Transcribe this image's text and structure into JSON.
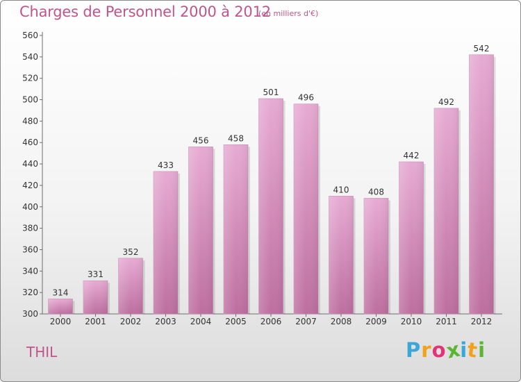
{
  "header": {
    "title": "Charges de Personnel 2000 à 2012",
    "subtitle": "(en milliers d'€)"
  },
  "footer": {
    "commune": "THIL",
    "brand": {
      "letters": [
        "P",
        "r",
        "o",
        "x",
        "i",
        "t",
        "i"
      ],
      "colors": [
        "#3aa7d8",
        "#f0a21f",
        "#e2337a",
        "#5bb531",
        "#3aa7d8",
        "#f0a21f",
        "#5bb531"
      ]
    }
  },
  "colors": {
    "bar_light": "#e7abd3",
    "bar_dark": "#bd6f9f",
    "accent": "#c2548c"
  },
  "chart_data": {
    "type": "bar",
    "categories": [
      "2000",
      "2001",
      "2002",
      "2003",
      "2004",
      "2005",
      "2006",
      "2007",
      "2008",
      "2009",
      "2010",
      "2011",
      "2012"
    ],
    "values": [
      314,
      331,
      352,
      433,
      456,
      458,
      501,
      496,
      410,
      408,
      442,
      492,
      542
    ],
    "ylim": [
      300,
      560
    ],
    "yticks": [
      300,
      320,
      340,
      360,
      380,
      400,
      420,
      440,
      460,
      480,
      500,
      520,
      540,
      560
    ],
    "data_labels": true,
    "grid": false,
    "xlabel": "",
    "ylabel": ""
  }
}
